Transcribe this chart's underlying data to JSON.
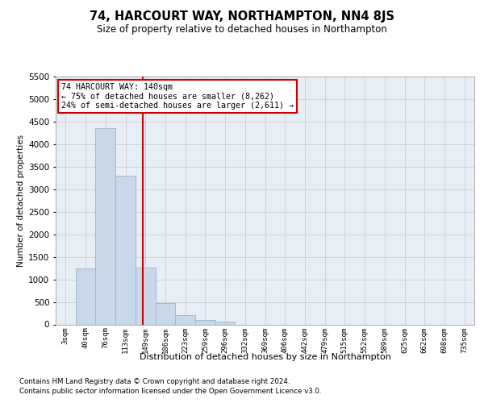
{
  "title": "74, HARCOURT WAY, NORTHAMPTON, NN4 8JS",
  "subtitle": "Size of property relative to detached houses in Northampton",
  "xlabel": "Distribution of detached houses by size in Northampton",
  "ylabel": "Number of detached properties",
  "footnote1": "Contains HM Land Registry data © Crown copyright and database right 2024.",
  "footnote2": "Contains public sector information licensed under the Open Government Licence v3.0.",
  "bar_labels": [
    "3sqm",
    "40sqm",
    "76sqm",
    "113sqm",
    "149sqm",
    "186sqm",
    "223sqm",
    "259sqm",
    "296sqm",
    "332sqm",
    "369sqm",
    "406sqm",
    "442sqm",
    "479sqm",
    "515sqm",
    "552sqm",
    "589sqm",
    "625sqm",
    "662sqm",
    "698sqm",
    "735sqm"
  ],
  "bar_values": [
    0,
    1250,
    4350,
    3300,
    1260,
    480,
    200,
    100,
    65,
    0,
    0,
    0,
    0,
    0,
    0,
    0,
    0,
    0,
    0,
    0,
    0
  ],
  "bar_color": "#c8d8e8",
  "bar_edge_color": "#9ab4cc",
  "vline_position": 3.87,
  "vline_color": "#cc0000",
  "annotation_line1": "74 HARCOURT WAY: 140sqm",
  "annotation_line2": "← 75% of detached houses are smaller (8,262)",
  "annotation_line3": "24% of semi-detached houses are larger (2,611) →",
  "annotation_box_facecolor": "#ffffff",
  "annotation_box_edgecolor": "#cc0000",
  "ylim": [
    0,
    5500
  ],
  "yticks": [
    0,
    500,
    1000,
    1500,
    2000,
    2500,
    3000,
    3500,
    4000,
    4500,
    5000,
    5500
  ],
  "grid_color": "#c8c8d0",
  "axes_bg_color": "#e8eef5",
  "fig_bg_color": "#ffffff"
}
